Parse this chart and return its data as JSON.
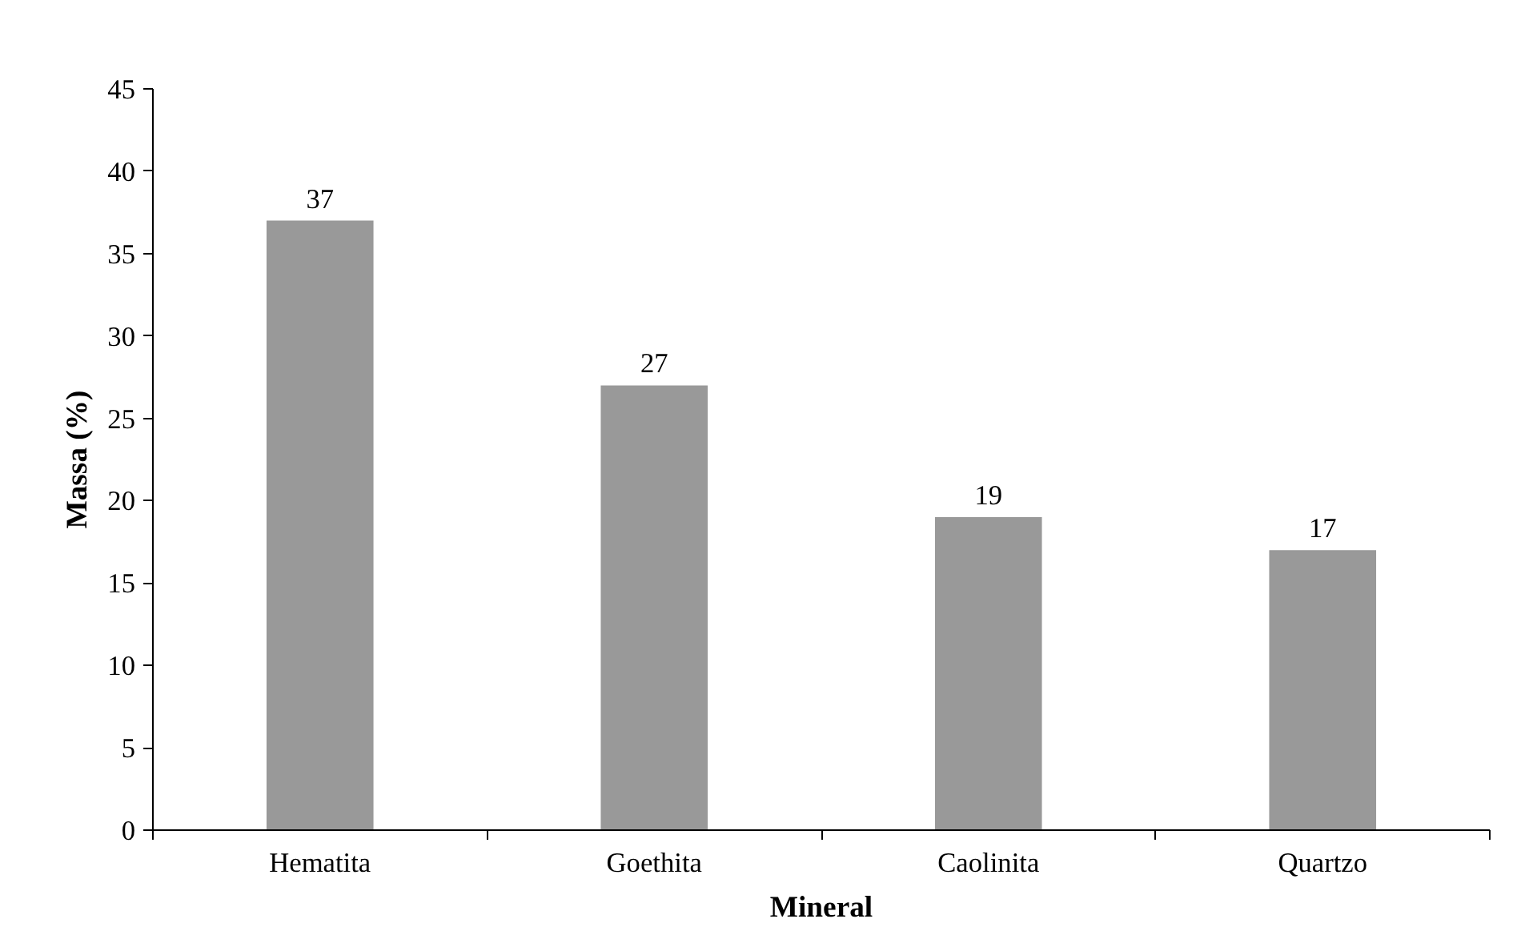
{
  "chart_data": {
    "type": "bar",
    "xlabel": "Mineral",
    "ylabel": "Massa (%)",
    "categories": [
      "Hematita",
      "Goethita",
      "Caolinita",
      "Quartzo"
    ],
    "values": [
      37,
      27,
      19,
      17
    ],
    "color": "#999999",
    "ylim": [
      0,
      45
    ],
    "yticks": [
      0,
      5,
      10,
      15,
      20,
      25,
      30,
      35,
      40,
      45
    ],
    "grid": false,
    "data_labels": true
  }
}
